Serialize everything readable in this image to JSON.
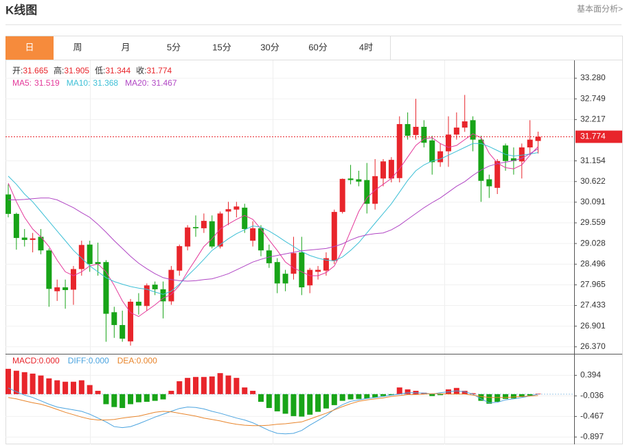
{
  "header": {
    "title": "K线图",
    "link": "基本面分析>"
  },
  "tabs": [
    "日",
    "周",
    "月",
    "5分",
    "15分",
    "30分",
    "60分",
    "4时"
  ],
  "active_tab": 0,
  "chart_data": [
    {
      "type": "candlestick",
      "readout_labels": {
        "open": "开:",
        "high": "高:",
        "low": "低:",
        "close": "收:"
      },
      "up_color": "#e8252b",
      "down_color": "#18a418",
      "open": [
        30.29,
        29.79,
        29.18,
        29.12,
        29.2,
        28.85,
        27.8,
        27.9,
        27.84,
        28.37,
        29.0,
        28.55,
        28.55,
        27.26,
        26.93,
        26.51,
        27.53,
        27.42,
        27.97,
        27.85,
        27.54,
        28.33,
        28.95,
        29.45,
        29.42,
        29.6,
        28.95,
        29.85,
        29.9,
        29.95,
        29.1,
        29.42,
        28.85,
        28.55,
        28.25,
        28.25,
        28.8,
        27.95,
        28.3,
        28.33,
        28.58,
        29.84,
        30.7,
        30.68,
        30.66,
        30.05,
        30.7,
        30.7,
        30.71,
        32.1,
        31.82,
        32.03,
        31.68,
        31.12,
        31.4,
        31.83,
        32.01,
        32.2,
        31.7,
        30.68,
        30.46,
        31.55,
        31.22,
        31.14,
        31.5,
        31.665
      ],
      "high": [
        30.55,
        29.82,
        29.4,
        29.3,
        29.4,
        28.9,
        28.1,
        28.1,
        28.45,
        29.1,
        29.1,
        29.05,
        28.6,
        27.4,
        27.3,
        27.6,
        27.75,
        28.0,
        28.05,
        28.05,
        28.45,
        29.0,
        29.5,
        29.75,
        29.8,
        29.75,
        29.85,
        30.1,
        30.1,
        30.05,
        29.6,
        29.5,
        29.0,
        28.65,
        28.35,
        29.2,
        29.2,
        28.4,
        28.45,
        28.8,
        29.9,
        30.7,
        31.05,
        30.9,
        31.1,
        31.2,
        31.2,
        31.25,
        32.3,
        32.4,
        32.75,
        32.2,
        31.8,
        31.6,
        32.3,
        32.4,
        32.85,
        32.3,
        31.8,
        30.8,
        31.2,
        31.6,
        31.5,
        31.6,
        32.2,
        31.905
      ],
      "low": [
        29.7,
        28.87,
        28.95,
        28.8,
        28.75,
        27.4,
        27.55,
        27.35,
        27.45,
        28.2,
        28.3,
        28.2,
        26.5,
        26.6,
        26.5,
        26.4,
        27.2,
        27.3,
        27.7,
        27.1,
        27.45,
        28.2,
        28.85,
        29.2,
        29.3,
        28.9,
        28.9,
        29.5,
        29.7,
        29.3,
        28.95,
        28.7,
        28.4,
        27.75,
        27.8,
        28.1,
        27.7,
        27.75,
        28.1,
        28.2,
        28.5,
        29.8,
        30.55,
        30.5,
        29.8,
        29.9,
        30.5,
        30.6,
        30.6,
        31.7,
        31.7,
        31.5,
        30.8,
        31.0,
        31.0,
        31.7,
        31.9,
        31.4,
        30.1,
        30.2,
        30.3,
        30.9,
        30.8,
        30.7,
        31.3,
        31.344
      ],
      "close": [
        29.79,
        29.17,
        29.12,
        29.16,
        28.85,
        27.86,
        27.9,
        27.83,
        28.37,
        28.99,
        28.5,
        28.5,
        27.22,
        26.93,
        26.58,
        27.53,
        27.43,
        27.95,
        27.85,
        27.54,
        28.35,
        28.96,
        29.44,
        29.42,
        29.61,
        28.95,
        29.8,
        29.91,
        29.98,
        29.4,
        29.42,
        28.85,
        28.52,
        28.0,
        28.0,
        28.78,
        27.9,
        28.35,
        28.35,
        28.65,
        29.84,
        30.69,
        30.66,
        30.62,
        30.05,
        30.76,
        31.14,
        31.18,
        32.1,
        31.8,
        32.03,
        31.62,
        31.12,
        31.4,
        31.83,
        32.01,
        32.17,
        31.7,
        30.64,
        30.5,
        31.15,
        31.15,
        31.15,
        31.5,
        31.7,
        31.774
      ],
      "lines": [
        {
          "name": "MA5:",
          "color": "#e4389a",
          "values": [
            30.58,
            30.1,
            29.7,
            29.4,
            29.2,
            28.95,
            28.6,
            28.3,
            28.2,
            28.3,
            28.45,
            28.5,
            28.3,
            27.95,
            27.55,
            27.25,
            27.15,
            27.3,
            27.45,
            27.62,
            27.72,
            27.95,
            28.3,
            28.62,
            28.95,
            29.15,
            29.4,
            29.53,
            29.65,
            29.75,
            29.65,
            29.4,
            29.12,
            28.85,
            28.55,
            28.4,
            28.3,
            28.2,
            28.2,
            28.28,
            28.45,
            28.85,
            29.35,
            29.85,
            30.2,
            30.4,
            30.55,
            30.7,
            30.95,
            31.25,
            31.55,
            31.72,
            31.75,
            31.6,
            31.5,
            31.55,
            31.7,
            31.85,
            31.75,
            31.35,
            31.1,
            30.98,
            30.95,
            31.05,
            31.3,
            31.519
          ]
        },
        {
          "name": "MA10:",
          "color": "#3cbfd6",
          "values": [
            30.76,
            30.55,
            30.3,
            30.1,
            29.85,
            29.6,
            29.35,
            29.1,
            28.85,
            28.65,
            28.45,
            28.3,
            28.15,
            28.05,
            27.98,
            27.92,
            27.88,
            27.85,
            27.78,
            27.72,
            27.8,
            27.98,
            28.2,
            28.4,
            28.62,
            28.85,
            29.0,
            29.15,
            29.28,
            29.38,
            29.48,
            29.45,
            29.35,
            29.22,
            29.08,
            28.95,
            28.82,
            28.72,
            28.65,
            28.6,
            28.58,
            28.68,
            28.85,
            29.05,
            29.3,
            29.55,
            29.8,
            30.05,
            30.35,
            30.65,
            30.9,
            31.05,
            31.15,
            31.2,
            31.3,
            31.4,
            31.5,
            31.6,
            31.6,
            31.52,
            31.42,
            31.32,
            31.28,
            31.3,
            31.33,
            31.368
          ]
        },
        {
          "name": "MA20:",
          "color": "#b045c4",
          "values": [
            30.15,
            30.15,
            30.16,
            30.18,
            30.2,
            30.2,
            30.15,
            30.05,
            29.95,
            29.82,
            29.7,
            29.52,
            29.32,
            29.1,
            28.9,
            28.7,
            28.52,
            28.38,
            28.25,
            28.15,
            28.1,
            28.07,
            28.06,
            28.07,
            28.1,
            28.12,
            28.18,
            28.25,
            28.35,
            28.45,
            28.55,
            28.62,
            28.68,
            28.72,
            28.76,
            28.8,
            28.84,
            28.86,
            28.88,
            28.9,
            28.95,
            29.02,
            29.12,
            29.2,
            29.25,
            29.28,
            29.3,
            29.38,
            29.5,
            29.65,
            29.8,
            29.95,
            30.08,
            30.2,
            30.35,
            30.5,
            30.62,
            30.78,
            30.92,
            31.02,
            31.08,
            31.12,
            31.16,
            31.22,
            31.34,
            31.467
          ]
        }
      ],
      "ylim": [
        26.19,
        33.74
      ],
      "yticks": [
        {
          "value": 33.28,
          "label": "33.280"
        },
        32.749,
        32.217,
        31.154,
        30.622,
        30.091,
        29.559,
        29.028,
        28.496,
        27.965,
        27.433,
        26.901,
        {
          "value": 26.37,
          "label": "26.370"
        }
      ],
      "grid": true
    },
    {
      "type": "macd",
      "histogram": {
        "name": "MACD:0.000",
        "color": "#e8252b",
        "down_color": "#18a418",
        "values": [
          0.53,
          0.49,
          0.46,
          0.43,
          0.39,
          0.33,
          0.29,
          0.26,
          0.26,
          0.29,
          0.19,
          0.07,
          -0.21,
          -0.27,
          -0.29,
          -0.21,
          -0.17,
          -0.16,
          -0.14,
          -0.11,
          0.07,
          0.27,
          0.34,
          0.36,
          0.36,
          0.37,
          0.44,
          0.39,
          0.34,
          0.14,
          0.07,
          -0.16,
          -0.29,
          -0.36,
          -0.41,
          -0.46,
          -0.47,
          -0.43,
          -0.37,
          -0.3,
          -0.23,
          -0.14,
          -0.11,
          -0.1,
          -0.09,
          -0.07,
          -0.04,
          -0.02,
          0.14,
          0.1,
          0.07,
          0.03,
          -0.04,
          -0.02,
          0.1,
          0.13,
          0.07,
          0.02,
          -0.14,
          -0.2,
          -0.16,
          -0.1,
          -0.09,
          -0.06,
          -0.03,
          0.01
        ]
      },
      "lines": [
        {
          "name": "DIFF:0.000",
          "color": "#4aa3df",
          "values": [
            0.13,
            0.05,
            -0.02,
            -0.07,
            -0.14,
            -0.21,
            -0.27,
            -0.3,
            -0.33,
            -0.36,
            -0.42,
            -0.5,
            -0.58,
            -0.68,
            -0.7,
            -0.68,
            -0.62,
            -0.55,
            -0.48,
            -0.42,
            -0.36,
            -0.3,
            -0.27,
            -0.28,
            -0.31,
            -0.36,
            -0.4,
            -0.45,
            -0.5,
            -0.54,
            -0.6,
            -0.68,
            -0.76,
            -0.82,
            -0.83,
            -0.82,
            -0.76,
            -0.65,
            -0.55,
            -0.45,
            -0.32,
            -0.22,
            -0.15,
            -0.12,
            -0.09,
            -0.07,
            -0.05,
            -0.02,
            0.0,
            0.03,
            0.03,
            0.02,
            0.0,
            0.03,
            0.05,
            0.07,
            0.05,
            0.0,
            -0.1,
            -0.18,
            -0.17,
            -0.12,
            -0.1,
            -0.07,
            -0.04,
            0.0
          ]
        },
        {
          "name": "DEA:0.000",
          "color": "#e8842a",
          "values": [
            -0.07,
            -0.1,
            -0.14,
            -0.18,
            -0.21,
            -0.26,
            -0.32,
            -0.38,
            -0.43,
            -0.48,
            -0.52,
            -0.54,
            -0.54,
            -0.53,
            -0.5,
            -0.48,
            -0.46,
            -0.42,
            -0.38,
            -0.36,
            -0.37,
            -0.4,
            -0.43,
            -0.46,
            -0.5,
            -0.53,
            -0.56,
            -0.6,
            -0.63,
            -0.65,
            -0.66,
            -0.66,
            -0.65,
            -0.63,
            -0.62,
            -0.6,
            -0.58,
            -0.52,
            -0.46,
            -0.4,
            -0.33,
            -0.26,
            -0.2,
            -0.15,
            -0.12,
            -0.1,
            -0.08,
            -0.05,
            -0.03,
            -0.01,
            -0.01,
            0.0,
            0.01,
            0.01,
            0.0,
            0.0,
            0.0,
            -0.02,
            -0.05,
            -0.07,
            -0.07,
            -0.07,
            -0.06,
            -0.05,
            -0.04,
            -0.03
          ]
        }
      ],
      "ylim": [
        -1.05,
        0.83
      ],
      "yticks": [
        0.394,
        -0.036,
        -0.467,
        -0.897
      ],
      "grid": true
    }
  ]
}
